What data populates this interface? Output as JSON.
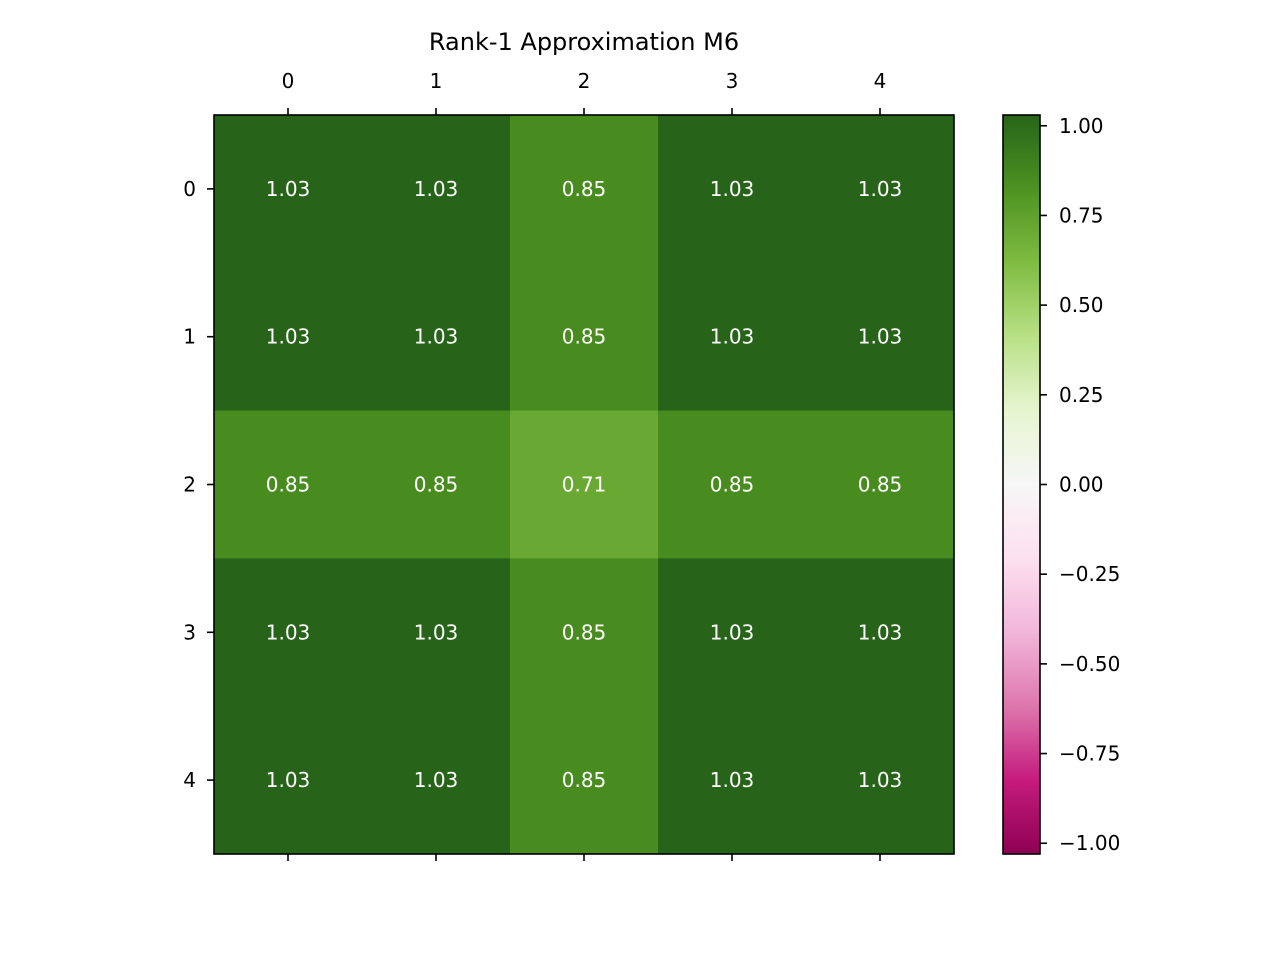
{
  "chart_data": {
    "type": "heatmap",
    "title": "Rank-1 Approximation M6",
    "row_labels": [
      "0",
      "1",
      "2",
      "3",
      "4"
    ],
    "col_labels": [
      "0",
      "1",
      "2",
      "3",
      "4"
    ],
    "values": [
      [
        1.03,
        1.03,
        0.85,
        1.03,
        1.03
      ],
      [
        1.03,
        1.03,
        0.85,
        1.03,
        1.03
      ],
      [
        0.85,
        0.85,
        0.71,
        0.85,
        0.85
      ],
      [
        1.03,
        1.03,
        0.85,
        1.03,
        1.03
      ],
      [
        1.03,
        1.03,
        0.85,
        1.03,
        1.03
      ]
    ],
    "cell_labels": [
      [
        "1.03",
        "1.03",
        "0.85",
        "1.03",
        "1.03"
      ],
      [
        "1.03",
        "1.03",
        "0.85",
        "1.03",
        "1.03"
      ],
      [
        "0.85",
        "0.85",
        "0.71",
        "0.85",
        "0.85"
      ],
      [
        "1.03",
        "1.03",
        "0.85",
        "1.03",
        "1.03"
      ],
      [
        "1.03",
        "1.03",
        "0.85",
        "1.03",
        "1.03"
      ]
    ],
    "colormap": "PiYG",
    "colormap_stops": [
      "#8e0152",
      "#c51b7d",
      "#de77ae",
      "#f1b6da",
      "#fde0ef",
      "#f7f7f7",
      "#e6f5d0",
      "#b8e186",
      "#7fbc41",
      "#4d9221",
      "#276419"
    ],
    "color_range": [
      -1.03,
      1.03
    ],
    "colorbar": {
      "ticks": [
        1.0,
        0.75,
        0.5,
        0.25,
        0.0,
        -0.25,
        -0.5,
        -0.75,
        -1.0
      ],
      "tick_labels": [
        "1.00",
        "0.75",
        "0.50",
        "0.25",
        "0.00",
        "−0.25",
        "−0.50",
        "−0.75",
        "−1.00"
      ]
    },
    "x_ticks_position": "top",
    "grid": false
  }
}
